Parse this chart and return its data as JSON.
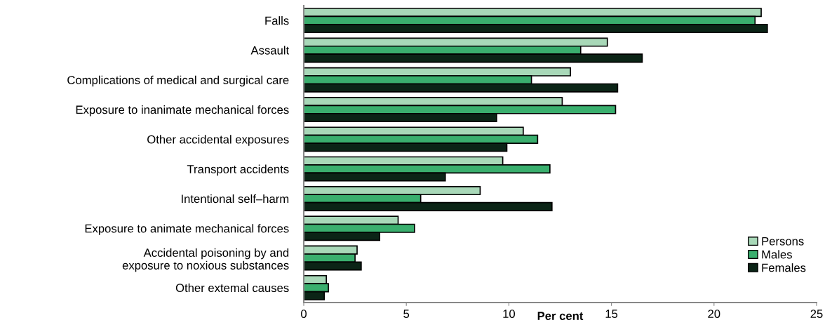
{
  "chart_data": {
    "type": "bar",
    "orientation": "horizontal",
    "xlabel": "Per cent",
    "categories": [
      "Falls",
      "Assault",
      "Complications of medical and surgical care",
      "Exposure to inanimate mechanical forces",
      "Other accidental exposures",
      "Transport accidents",
      "Intentional self–harm",
      "Exposure to animate mechanical forces",
      "Accidental poisoning by and\nexposure to noxious substances",
      "Other extemal causes"
    ],
    "series": [
      {
        "name": "Persons",
        "color": "#a8d8b8",
        "values": [
          22.3,
          14.8,
          13.0,
          12.6,
          10.7,
          9.7,
          8.6,
          4.6,
          2.6,
          1.1
        ]
      },
      {
        "name": "Males",
        "color": "#3aaf6e",
        "values": [
          22.0,
          13.5,
          11.1,
          15.2,
          11.4,
          12.0,
          5.7,
          5.4,
          2.5,
          1.2
        ]
      },
      {
        "name": "Females",
        "color": "#0b2416",
        "values": [
          22.6,
          16.5,
          15.3,
          9.4,
          9.9,
          6.9,
          12.1,
          3.7,
          2.8,
          1.0
        ]
      }
    ],
    "xlim": [
      0,
      25
    ],
    "xticks": [
      0,
      5,
      10,
      15,
      20,
      25
    ],
    "grid": false,
    "legend": "bottom right"
  }
}
